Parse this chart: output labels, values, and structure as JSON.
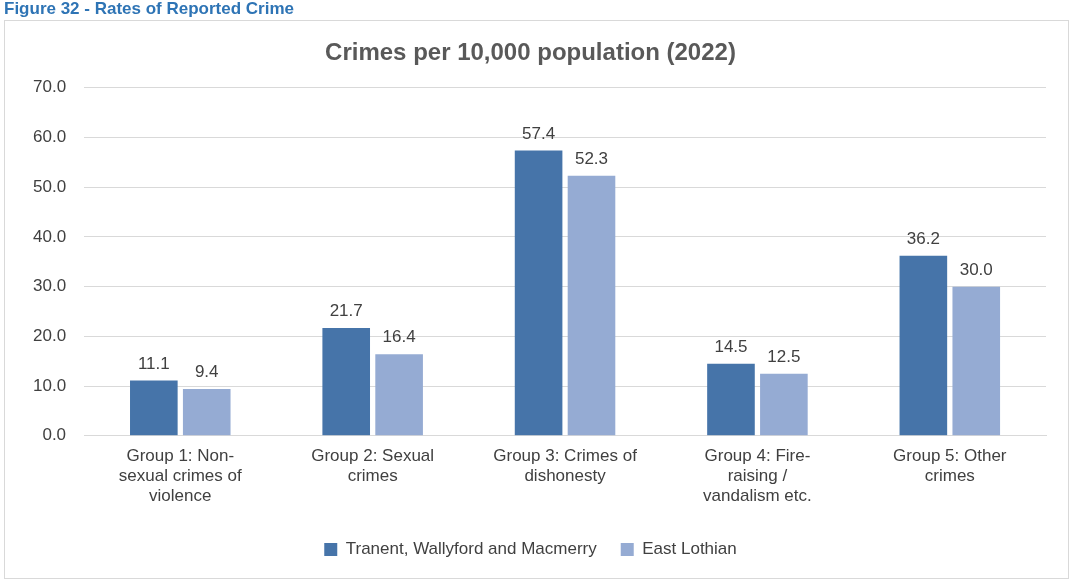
{
  "chart_data": {
    "type": "bar",
    "title": "Crimes per 10,000 population (2022)",
    "annotations": [
      "Figure 32 - Rates of Reported Crime"
    ],
    "categories": [
      "Group 1: Non-sexual crimes of violence",
      "Group 2: Sexual crimes",
      "Group 3: Crimes of dishonesty",
      "Group 4: Fire-raising / vandalism etc.",
      "Group 5: Other crimes"
    ],
    "series": [
      {
        "name": "Tranent, Wallyford and Macmerry",
        "color": "#4674a9",
        "values": [
          11.1,
          21.7,
          57.4,
          14.5,
          36.2
        ],
        "value_labels": [
          "11.1",
          "21.7",
          "57.4",
          "14.5",
          "36.2"
        ]
      },
      {
        "name": "East Lothian",
        "color": "#95abd3",
        "values": [
          9.4,
          16.4,
          52.3,
          12.5,
          30.0
        ],
        "value_labels": [
          "9.4",
          "16.4",
          "52.3",
          "12.5",
          "30.0"
        ]
      }
    ],
    "ylim": [
      0,
      70
    ],
    "yticks": [
      {
        "value": 0,
        "label": "0.0"
      },
      {
        "value": 10,
        "label": "10.0"
      },
      {
        "value": 20,
        "label": "20.0"
      },
      {
        "value": 30,
        "label": "30.0"
      },
      {
        "value": 40,
        "label": "40.0"
      },
      {
        "value": 50,
        "label": "50.0"
      },
      {
        "value": 60,
        "label": "60.0"
      },
      {
        "value": 70,
        "label": "70.0"
      }
    ],
    "grid": "y",
    "legend": "bottom"
  }
}
